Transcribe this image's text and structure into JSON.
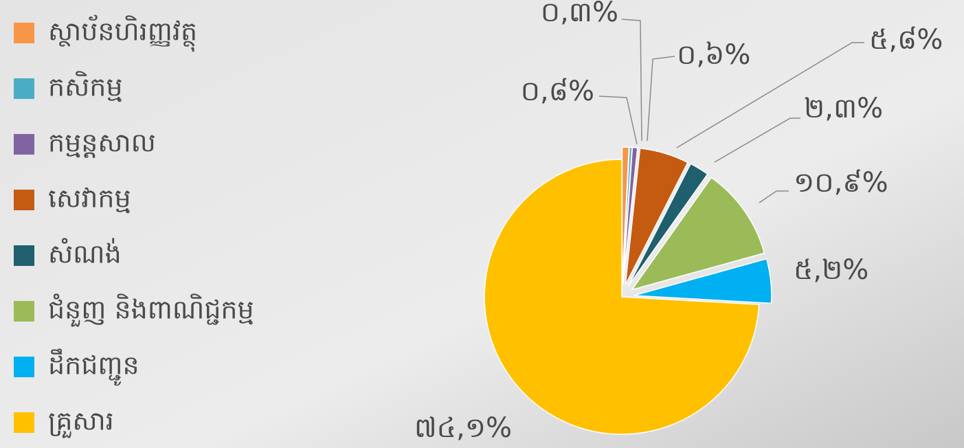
{
  "chart_data": {
    "type": "pie",
    "categories": [
      "ស្ថាប័នហិរញ្ញវត្ថុ",
      "កសិកម្ម",
      "កម្មន្តសាល",
      "សេវាកម្ម",
      "សំណង់",
      "ជំនួញ និងពាណិជ្ជកម្ម",
      "ដឹកជញ្ជូន",
      "គ្រួសារ"
    ],
    "values": [
      0.8,
      0.3,
      0.6,
      5.8,
      2.3,
      10.9,
      5.2,
      74.1
    ],
    "value_labels": [
      "០,៨%",
      "០,៣%",
      "០,៦%",
      "៥,៨%",
      "២,៣%",
      "១០,៩%",
      "៥,២%",
      "៧៤,១%"
    ],
    "colors": [
      "#f79646",
      "#4bacc6",
      "#8064a2",
      "#c55a11",
      "#1f5f6e",
      "#9bbb59",
      "#00b0f0",
      "#ffc000"
    ],
    "legend": "left"
  }
}
